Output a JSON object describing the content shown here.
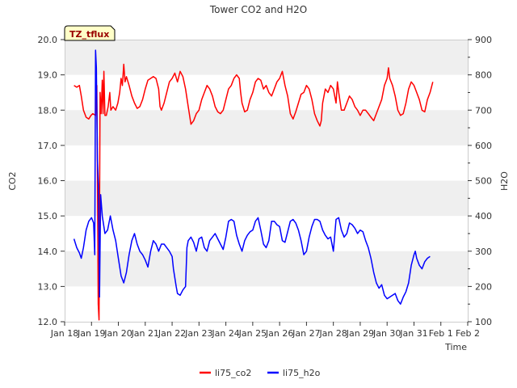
{
  "chart_data": {
    "type": "line",
    "title": "Tower CO2 and H2O",
    "badge": "TZ_tflux",
    "xlabel": "Time",
    "ylabel_left": "CO2",
    "ylabel_right": "H2O",
    "xlim": [
      0,
      15
    ],
    "ylim_left": [
      12.0,
      20.0
    ],
    "ylim_right": [
      100,
      900
    ],
    "x_ticks": [
      {
        "x": 0,
        "label": "Jan 18"
      },
      {
        "x": 1,
        "label": "Jan 19"
      },
      {
        "x": 2,
        "label": "Jan 20"
      },
      {
        "x": 3,
        "label": "Jan 21"
      },
      {
        "x": 4,
        "label": "Jan 22"
      },
      {
        "x": 5,
        "label": "Jan 23"
      },
      {
        "x": 6,
        "label": "Jan 24"
      },
      {
        "x": 7,
        "label": "Jan 25"
      },
      {
        "x": 8,
        "label": "Jan 26"
      },
      {
        "x": 9,
        "label": "Jan 27"
      },
      {
        "x": 10,
        "label": "Jan 28"
      },
      {
        "x": 11,
        "label": "Jan 29"
      },
      {
        "x": 12,
        "label": "Jan 30"
      },
      {
        "x": 13,
        "label": "Jan 31"
      },
      {
        "x": 14,
        "label": "Feb 1"
      },
      {
        "x": 15,
        "label": "Feb 2"
      }
    ],
    "y_ticks_left": [
      "12.0",
      "13.0",
      "14.0",
      "15.0",
      "16.0",
      "17.0",
      "18.0",
      "19.0",
      "20.0"
    ],
    "y_ticks_right": [
      "100",
      "200",
      "300",
      "400",
      "500",
      "600",
      "700",
      "800",
      "900"
    ],
    "grid_bands": true,
    "legend_position": "bottom-center",
    "series": [
      {
        "name": "li75_co2",
        "axis": "left",
        "color": "#ff0000",
        "points": [
          [
            0.35,
            18.7
          ],
          [
            0.45,
            18.65
          ],
          [
            0.55,
            18.7
          ],
          [
            0.62,
            18.4
          ],
          [
            0.7,
            18.0
          ],
          [
            0.8,
            17.8
          ],
          [
            0.9,
            17.75
          ],
          [
            0.98,
            17.85
          ],
          [
            1.05,
            17.9
          ],
          [
            1.15,
            17.85
          ],
          [
            1.2,
            18.7
          ],
          [
            1.25,
            12.5
          ],
          [
            1.28,
            12.05
          ],
          [
            1.32,
            18.5
          ],
          [
            1.36,
            17.9
          ],
          [
            1.4,
            18.85
          ],
          [
            1.43,
            17.9
          ],
          [
            1.46,
            19.1
          ],
          [
            1.5,
            17.85
          ],
          [
            1.55,
            17.85
          ],
          [
            1.62,
            18.1
          ],
          [
            1.68,
            18.5
          ],
          [
            1.72,
            18.0
          ],
          [
            1.8,
            18.1
          ],
          [
            1.9,
            18.0
          ],
          [
            1.98,
            18.2
          ],
          [
            2.05,
            18.5
          ],
          [
            2.1,
            18.9
          ],
          [
            2.15,
            18.7
          ],
          [
            2.2,
            19.3
          ],
          [
            2.25,
            18.8
          ],
          [
            2.3,
            18.95
          ],
          [
            2.4,
            18.7
          ],
          [
            2.5,
            18.4
          ],
          [
            2.6,
            18.2
          ],
          [
            2.7,
            18.05
          ],
          [
            2.8,
            18.1
          ],
          [
            2.9,
            18.3
          ],
          [
            3.0,
            18.6
          ],
          [
            3.1,
            18.85
          ],
          [
            3.2,
            18.9
          ],
          [
            3.3,
            18.95
          ],
          [
            3.4,
            18.9
          ],
          [
            3.5,
            18.6
          ],
          [
            3.55,
            18.1
          ],
          [
            3.6,
            18.0
          ],
          [
            3.7,
            18.2
          ],
          [
            3.8,
            18.5
          ],
          [
            3.9,
            18.8
          ],
          [
            4.0,
            18.9
          ],
          [
            4.1,
            19.05
          ],
          [
            4.2,
            18.8
          ],
          [
            4.3,
            19.1
          ],
          [
            4.4,
            18.95
          ],
          [
            4.5,
            18.6
          ],
          [
            4.6,
            18.1
          ],
          [
            4.7,
            17.6
          ],
          [
            4.8,
            17.7
          ],
          [
            4.9,
            17.9
          ],
          [
            5.0,
            18.0
          ],
          [
            5.1,
            18.3
          ],
          [
            5.2,
            18.5
          ],
          [
            5.3,
            18.7
          ],
          [
            5.4,
            18.6
          ],
          [
            5.5,
            18.4
          ],
          [
            5.6,
            18.1
          ],
          [
            5.7,
            17.95
          ],
          [
            5.8,
            17.9
          ],
          [
            5.9,
            18.0
          ],
          [
            6.0,
            18.3
          ],
          [
            6.1,
            18.6
          ],
          [
            6.2,
            18.7
          ],
          [
            6.3,
            18.9
          ],
          [
            6.4,
            19.0
          ],
          [
            6.5,
            18.9
          ],
          [
            6.55,
            18.5
          ],
          [
            6.6,
            18.2
          ],
          [
            6.7,
            17.95
          ],
          [
            6.8,
            18.0
          ],
          [
            6.9,
            18.3
          ],
          [
            7.0,
            18.5
          ],
          [
            7.1,
            18.8
          ],
          [
            7.2,
            18.9
          ],
          [
            7.3,
            18.85
          ],
          [
            7.4,
            18.6
          ],
          [
            7.5,
            18.7
          ],
          [
            7.6,
            18.5
          ],
          [
            7.7,
            18.4
          ],
          [
            7.8,
            18.6
          ],
          [
            7.9,
            18.8
          ],
          [
            8.0,
            18.9
          ],
          [
            8.1,
            19.1
          ],
          [
            8.2,
            18.7
          ],
          [
            8.3,
            18.4
          ],
          [
            8.4,
            17.9
          ],
          [
            8.5,
            17.75
          ],
          [
            8.6,
            17.95
          ],
          [
            8.7,
            18.2
          ],
          [
            8.8,
            18.45
          ],
          [
            8.9,
            18.5
          ],
          [
            9.0,
            18.7
          ],
          [
            9.1,
            18.6
          ],
          [
            9.2,
            18.3
          ],
          [
            9.3,
            17.9
          ],
          [
            9.4,
            17.7
          ],
          [
            9.5,
            17.55
          ],
          [
            9.55,
            17.7
          ],
          [
            9.6,
            18.2
          ],
          [
            9.7,
            18.6
          ],
          [
            9.8,
            18.5
          ],
          [
            9.9,
            18.7
          ],
          [
            10.0,
            18.6
          ],
          [
            10.1,
            18.2
          ],
          [
            10.15,
            18.8
          ],
          [
            10.2,
            18.5
          ],
          [
            10.3,
            18.0
          ],
          [
            10.4,
            18.0
          ],
          [
            10.5,
            18.2
          ],
          [
            10.6,
            18.4
          ],
          [
            10.7,
            18.3
          ],
          [
            10.8,
            18.1
          ],
          [
            10.9,
            18.0
          ],
          [
            11.0,
            17.85
          ],
          [
            11.1,
            18.0
          ],
          [
            11.2,
            18.0
          ],
          [
            11.3,
            17.9
          ],
          [
            11.4,
            17.8
          ],
          [
            11.5,
            17.7
          ],
          [
            11.6,
            17.9
          ],
          [
            11.7,
            18.1
          ],
          [
            11.8,
            18.3
          ],
          [
            11.9,
            18.7
          ],
          [
            12.0,
            18.9
          ],
          [
            12.05,
            19.2
          ],
          [
            12.1,
            18.9
          ],
          [
            12.2,
            18.7
          ],
          [
            12.3,
            18.4
          ],
          [
            12.4,
            18.0
          ],
          [
            12.5,
            17.85
          ],
          [
            12.6,
            17.9
          ],
          [
            12.7,
            18.2
          ],
          [
            12.8,
            18.6
          ],
          [
            12.9,
            18.8
          ],
          [
            13.0,
            18.7
          ],
          [
            13.1,
            18.5
          ],
          [
            13.2,
            18.3
          ],
          [
            13.3,
            18.0
          ],
          [
            13.4,
            17.95
          ],
          [
            13.5,
            18.3
          ],
          [
            13.6,
            18.5
          ],
          [
            13.7,
            18.8
          ]
        ]
      },
      {
        "name": "li75_h2o",
        "axis": "right",
        "color": "#0000ff",
        "points": [
          [
            0.35,
            335
          ],
          [
            0.45,
            310
          ],
          [
            0.55,
            295
          ],
          [
            0.62,
            280
          ],
          [
            0.7,
            310
          ],
          [
            0.8,
            360
          ],
          [
            0.9,
            385
          ],
          [
            1.0,
            395
          ],
          [
            1.08,
            380
          ],
          [
            1.12,
            290
          ],
          [
            1.15,
            870
          ],
          [
            1.18,
            820
          ],
          [
            1.22,
            560
          ],
          [
            1.26,
            480
          ],
          [
            1.3,
            170
          ],
          [
            1.34,
            460
          ],
          [
            1.4,
            400
          ],
          [
            1.5,
            350
          ],
          [
            1.6,
            360
          ],
          [
            1.7,
            400
          ],
          [
            1.8,
            360
          ],
          [
            1.9,
            330
          ],
          [
            2.0,
            280
          ],
          [
            2.1,
            230
          ],
          [
            2.2,
            210
          ],
          [
            2.3,
            240
          ],
          [
            2.4,
            290
          ],
          [
            2.5,
            330
          ],
          [
            2.6,
            350
          ],
          [
            2.7,
            320
          ],
          [
            2.8,
            300
          ],
          [
            2.9,
            290
          ],
          [
            3.0,
            275
          ],
          [
            3.1,
            255
          ],
          [
            3.2,
            300
          ],
          [
            3.3,
            330
          ],
          [
            3.4,
            320
          ],
          [
            3.5,
            300
          ],
          [
            3.6,
            320
          ],
          [
            3.7,
            320
          ],
          [
            3.8,
            310
          ],
          [
            3.9,
            300
          ],
          [
            4.0,
            285
          ],
          [
            4.05,
            250
          ],
          [
            4.1,
            225
          ],
          [
            4.15,
            200
          ],
          [
            4.2,
            180
          ],
          [
            4.3,
            175
          ],
          [
            4.4,
            190
          ],
          [
            4.5,
            200
          ],
          [
            4.55,
            310
          ],
          [
            4.6,
            330
          ],
          [
            4.7,
            340
          ],
          [
            4.8,
            325
          ],
          [
            4.9,
            300
          ],
          [
            5.0,
            335
          ],
          [
            5.1,
            340
          ],
          [
            5.2,
            310
          ],
          [
            5.3,
            300
          ],
          [
            5.4,
            330
          ],
          [
            5.5,
            340
          ],
          [
            5.6,
            350
          ],
          [
            5.7,
            335
          ],
          [
            5.8,
            320
          ],
          [
            5.9,
            305
          ],
          [
            6.0,
            340
          ],
          [
            6.1,
            385
          ],
          [
            6.2,
            390
          ],
          [
            6.3,
            385
          ],
          [
            6.4,
            345
          ],
          [
            6.5,
            320
          ],
          [
            6.6,
            300
          ],
          [
            6.7,
            330
          ],
          [
            6.8,
            345
          ],
          [
            6.9,
            355
          ],
          [
            7.0,
            360
          ],
          [
            7.1,
            385
          ],
          [
            7.2,
            395
          ],
          [
            7.3,
            360
          ],
          [
            7.4,
            320
          ],
          [
            7.5,
            310
          ],
          [
            7.6,
            330
          ],
          [
            7.7,
            385
          ],
          [
            7.8,
            385
          ],
          [
            7.9,
            375
          ],
          [
            8.0,
            370
          ],
          [
            8.1,
            330
          ],
          [
            8.2,
            325
          ],
          [
            8.3,
            355
          ],
          [
            8.4,
            385
          ],
          [
            8.5,
            390
          ],
          [
            8.6,
            380
          ],
          [
            8.7,
            360
          ],
          [
            8.8,
            330
          ],
          [
            8.9,
            290
          ],
          [
            9.0,
            300
          ],
          [
            9.1,
            340
          ],
          [
            9.2,
            370
          ],
          [
            9.3,
            390
          ],
          [
            9.4,
            390
          ],
          [
            9.5,
            385
          ],
          [
            9.6,
            360
          ],
          [
            9.7,
            345
          ],
          [
            9.8,
            335
          ],
          [
            9.9,
            340
          ],
          [
            10.0,
            300
          ],
          [
            10.1,
            390
          ],
          [
            10.2,
            395
          ],
          [
            10.3,
            360
          ],
          [
            10.4,
            340
          ],
          [
            10.5,
            350
          ],
          [
            10.6,
            380
          ],
          [
            10.7,
            375
          ],
          [
            10.8,
            365
          ],
          [
            10.9,
            350
          ],
          [
            11.0,
            360
          ],
          [
            11.1,
            355
          ],
          [
            11.2,
            330
          ],
          [
            11.3,
            310
          ],
          [
            11.4,
            280
          ],
          [
            11.5,
            240
          ],
          [
            11.6,
            210
          ],
          [
            11.7,
            195
          ],
          [
            11.8,
            205
          ],
          [
            11.9,
            175
          ],
          [
            12.0,
            165
          ],
          [
            12.1,
            170
          ],
          [
            12.2,
            175
          ],
          [
            12.3,
            180
          ],
          [
            12.4,
            160
          ],
          [
            12.5,
            150
          ],
          [
            12.6,
            170
          ],
          [
            12.7,
            185
          ],
          [
            12.8,
            210
          ],
          [
            12.9,
            260
          ],
          [
            13.0,
            290
          ],
          [
            13.05,
            300
          ],
          [
            13.1,
            280
          ],
          [
            13.2,
            260
          ],
          [
            13.3,
            250
          ],
          [
            13.4,
            270
          ],
          [
            13.5,
            280
          ],
          [
            13.6,
            285
          ]
        ]
      }
    ]
  }
}
